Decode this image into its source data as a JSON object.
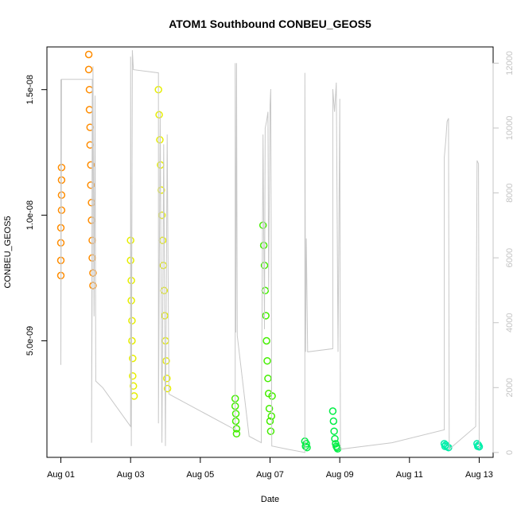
{
  "chart_data": {
    "type": "scatter",
    "title": "ATOM1 Southbound CONBEU_GEOS5",
    "xlabel": "Date",
    "ylabel": "CONBEU_GEOS5",
    "x_unit": "days since Aug 01",
    "xlim": [
      -0.4,
      12.4
    ],
    "ylim": [
      3.6e-10,
      1.67e-08
    ],
    "y2lim": [
      -150,
      12500
    ],
    "x_ticks": [
      {
        "x": 0,
        "label": "Aug 01"
      },
      {
        "x": 2,
        "label": "Aug 03"
      },
      {
        "x": 4,
        "label": "Aug 05"
      },
      {
        "x": 6,
        "label": "Aug 07"
      },
      {
        "x": 8,
        "label": "Aug 09"
      },
      {
        "x": 10,
        "label": "Aug 11"
      },
      {
        "x": 12,
        "label": "Aug 13"
      }
    ],
    "y_ticks": [
      {
        "y": 5e-09,
        "label": "5.0e-09"
      },
      {
        "y": 1e-08,
        "label": "1.0e-08"
      },
      {
        "y": 1.5e-08,
        "label": "1.5e-08"
      }
    ],
    "y2_ticks": [
      {
        "y": 0,
        "label": "0"
      },
      {
        "y": 2000,
        "label": "2000"
      },
      {
        "y": 4000,
        "label": "4000"
      },
      {
        "y": 6000,
        "label": "6000"
      },
      {
        "y": 8000,
        "label": "8000"
      },
      {
        "y": 10000,
        "label": "10000"
      },
      {
        "y": 12000,
        "label": "12000"
      }
    ],
    "series": [
      {
        "color": "#FF8C00",
        "points": [
          {
            "x": 0.0,
            "y": 7.6e-09
          },
          {
            "x": 0.0,
            "y": 8.2e-09
          },
          {
            "x": 0.0,
            "y": 8.9e-09
          },
          {
            "x": 0.0,
            "y": 9.5e-09
          },
          {
            "x": 0.02,
            "y": 1.02e-08
          },
          {
            "x": 0.02,
            "y": 1.08e-08
          },
          {
            "x": 0.02,
            "y": 1.14e-08
          },
          {
            "x": 0.02,
            "y": 1.19e-08
          },
          {
            "x": 0.8,
            "y": 1.64e-08
          },
          {
            "x": 0.8,
            "y": 1.58e-08
          },
          {
            "x": 0.82,
            "y": 1.5e-08
          },
          {
            "x": 0.82,
            "y": 1.42e-08
          },
          {
            "x": 0.84,
            "y": 1.35e-08
          },
          {
            "x": 0.84,
            "y": 1.28e-08
          },
          {
            "x": 0.86,
            "y": 1.2e-08
          },
          {
            "x": 0.86,
            "y": 1.12e-08
          },
          {
            "x": 0.88,
            "y": 1.05e-08
          },
          {
            "x": 0.88,
            "y": 9.8e-09
          },
          {
            "x": 0.9,
            "y": 9e-09
          },
          {
            "x": 0.9,
            "y": 8.3e-09
          },
          {
            "x": 0.92,
            "y": 7.7e-09
          },
          {
            "x": 0.92,
            "y": 7.2e-09
          }
        ]
      },
      {
        "color": "#E6EE00",
        "points": [
          {
            "x": 2.0,
            "y": 9e-09
          },
          {
            "x": 2.0,
            "y": 8.2e-09
          },
          {
            "x": 2.02,
            "y": 7.4e-09
          },
          {
            "x": 2.02,
            "y": 6.6e-09
          },
          {
            "x": 2.04,
            "y": 5.8e-09
          },
          {
            "x": 2.04,
            "y": 5e-09
          },
          {
            "x": 2.06,
            "y": 4.3e-09
          },
          {
            "x": 2.06,
            "y": 3.6e-09
          },
          {
            "x": 2.08,
            "y": 3.2e-09
          },
          {
            "x": 2.1,
            "y": 2.8e-09
          },
          {
            "x": 2.8,
            "y": 1.5e-08
          },
          {
            "x": 2.82,
            "y": 1.4e-08
          },
          {
            "x": 2.84,
            "y": 1.3e-08
          },
          {
            "x": 2.86,
            "y": 1.2e-08
          },
          {
            "x": 2.88,
            "y": 1.1e-08
          },
          {
            "x": 2.9,
            "y": 1e-08
          },
          {
            "x": 2.92,
            "y": 9e-09
          },
          {
            "x": 2.94,
            "y": 8e-09
          },
          {
            "x": 2.96,
            "y": 7e-09
          },
          {
            "x": 2.98,
            "y": 6e-09
          },
          {
            "x": 3.0,
            "y": 5e-09
          },
          {
            "x": 3.02,
            "y": 4.2e-09
          },
          {
            "x": 3.04,
            "y": 3.5e-09
          },
          {
            "x": 3.06,
            "y": 3.1e-09
          }
        ]
      },
      {
        "color": "#44EE00",
        "points": [
          {
            "x": 5.0,
            "y": 2.7e-09
          },
          {
            "x": 5.0,
            "y": 2.4e-09
          },
          {
            "x": 5.02,
            "y": 2.1e-09
          },
          {
            "x": 5.02,
            "y": 1.8e-09
          },
          {
            "x": 5.04,
            "y": 1.5e-09
          },
          {
            "x": 5.04,
            "y": 1.3e-09
          },
          {
            "x": 5.8,
            "y": 9.6e-09
          },
          {
            "x": 5.82,
            "y": 8.8e-09
          },
          {
            "x": 5.84,
            "y": 8e-09
          },
          {
            "x": 5.86,
            "y": 7e-09
          },
          {
            "x": 5.88,
            "y": 6e-09
          },
          {
            "x": 5.9,
            "y": 5e-09
          },
          {
            "x": 5.92,
            "y": 4.2e-09
          },
          {
            "x": 5.94,
            "y": 3.5e-09
          },
          {
            "x": 5.96,
            "y": 2.9e-09
          },
          {
            "x": 5.98,
            "y": 2.3e-09
          },
          {
            "x": 6.0,
            "y": 1.8e-09
          },
          {
            "x": 6.02,
            "y": 1.4e-09
          },
          {
            "x": 6.04,
            "y": 2e-09
          },
          {
            "x": 6.06,
            "y": 2.8e-09
          }
        ]
      },
      {
        "color": "#00EE44",
        "points": [
          {
            "x": 7.0,
            "y": 1e-09
          },
          {
            "x": 7.02,
            "y": 8e-10
          },
          {
            "x": 7.04,
            "y": 9e-10
          },
          {
            "x": 7.06,
            "y": 7.5e-10
          },
          {
            "x": 7.8,
            "y": 2.2e-09
          },
          {
            "x": 7.82,
            "y": 1.8e-09
          },
          {
            "x": 7.84,
            "y": 1.4e-09
          },
          {
            "x": 7.86,
            "y": 1.1e-09
          },
          {
            "x": 7.88,
            "y": 9e-10
          },
          {
            "x": 7.9,
            "y": 8e-10
          },
          {
            "x": 7.92,
            "y": 7.5e-10
          },
          {
            "x": 7.94,
            "y": 7e-10
          }
        ]
      },
      {
        "color": "#00EEAA",
        "points": [
          {
            "x": 11.0,
            "y": 9e-10
          },
          {
            "x": 11.02,
            "y": 8e-10
          },
          {
            "x": 11.04,
            "y": 8.5e-10
          },
          {
            "x": 11.08,
            "y": 7.8e-10
          },
          {
            "x": 11.12,
            "y": 7.5e-10
          },
          {
            "x": 11.94,
            "y": 9e-10
          },
          {
            "x": 11.96,
            "y": 8e-10
          },
          {
            "x": 11.98,
            "y": 8.4e-10
          },
          {
            "x": 12.0,
            "y": 7.8e-10
          }
        ]
      }
    ],
    "secondary_line": {
      "color": "#C8C8C8",
      "y_axis": "right",
      "points": [
        {
          "x": 0.0,
          "y": 11500
        },
        {
          "x": 0.0,
          "y": 2700
        },
        {
          "x": 0.02,
          "y": 11500
        },
        {
          "x": 0.9,
          "y": 11500
        },
        {
          "x": 0.88,
          "y": 300
        },
        {
          "x": 0.92,
          "y": 11900
        },
        {
          "x": 0.95,
          "y": 4200
        },
        {
          "x": 0.98,
          "y": 11000
        },
        {
          "x": 1.0,
          "y": 2200
        },
        {
          "x": 1.2,
          "y": 2000
        },
        {
          "x": 2.0,
          "y": 800
        },
        {
          "x": 2.0,
          "y": 12200
        },
        {
          "x": 2.02,
          "y": 200
        },
        {
          "x": 2.05,
          "y": 12400
        },
        {
          "x": 2.08,
          "y": 11800
        },
        {
          "x": 2.8,
          "y": 11700
        },
        {
          "x": 2.8,
          "y": 900
        },
        {
          "x": 2.85,
          "y": 10500
        },
        {
          "x": 2.9,
          "y": 300
        },
        {
          "x": 2.95,
          "y": 9500
        },
        {
          "x": 3.0,
          "y": 200
        },
        {
          "x": 3.05,
          "y": 9800
        },
        {
          "x": 3.1,
          "y": 1800
        },
        {
          "x": 5.0,
          "y": 700
        },
        {
          "x": 5.0,
          "y": 12000
        },
        {
          "x": 5.02,
          "y": 3700
        },
        {
          "x": 5.04,
          "y": 12000
        },
        {
          "x": 5.06,
          "y": 3600
        },
        {
          "x": 5.4,
          "y": 500
        },
        {
          "x": 5.75,
          "y": 300
        },
        {
          "x": 5.8,
          "y": 9800
        },
        {
          "x": 5.84,
          "y": 3800
        },
        {
          "x": 5.86,
          "y": 10000
        },
        {
          "x": 5.9,
          "y": 10200
        },
        {
          "x": 5.94,
          "y": 10500
        },
        {
          "x": 5.96,
          "y": 5000
        },
        {
          "x": 6.0,
          "y": 10700
        },
        {
          "x": 6.02,
          "y": 11200
        },
        {
          "x": 6.05,
          "y": 200
        },
        {
          "x": 6.5,
          "y": 100
        },
        {
          "x": 7.0,
          "y": 0
        },
        {
          "x": 7.0,
          "y": 11700
        },
        {
          "x": 7.02,
          "y": 3100
        },
        {
          "x": 7.04,
          "y": 6600
        },
        {
          "x": 7.08,
          "y": 3100
        },
        {
          "x": 7.8,
          "y": 3200
        },
        {
          "x": 7.8,
          "y": 11200
        },
        {
          "x": 7.85,
          "y": 10500
        },
        {
          "x": 7.9,
          "y": 11400
        },
        {
          "x": 7.95,
          "y": 3100
        },
        {
          "x": 8.0,
          "y": 10900
        },
        {
          "x": 8.02,
          "y": 100
        },
        {
          "x": 9.5,
          "y": 300
        },
        {
          "x": 11.0,
          "y": 700
        },
        {
          "x": 11.0,
          "y": 9100
        },
        {
          "x": 11.04,
          "y": 9600
        },
        {
          "x": 11.08,
          "y": 10200
        },
        {
          "x": 11.12,
          "y": 10300
        },
        {
          "x": 11.14,
          "y": 100
        },
        {
          "x": 11.9,
          "y": 800
        },
        {
          "x": 11.94,
          "y": 9000
        },
        {
          "x": 11.98,
          "y": 8900
        },
        {
          "x": 12.0,
          "y": 100
        }
      ]
    },
    "grid": false,
    "legend": "none"
  }
}
